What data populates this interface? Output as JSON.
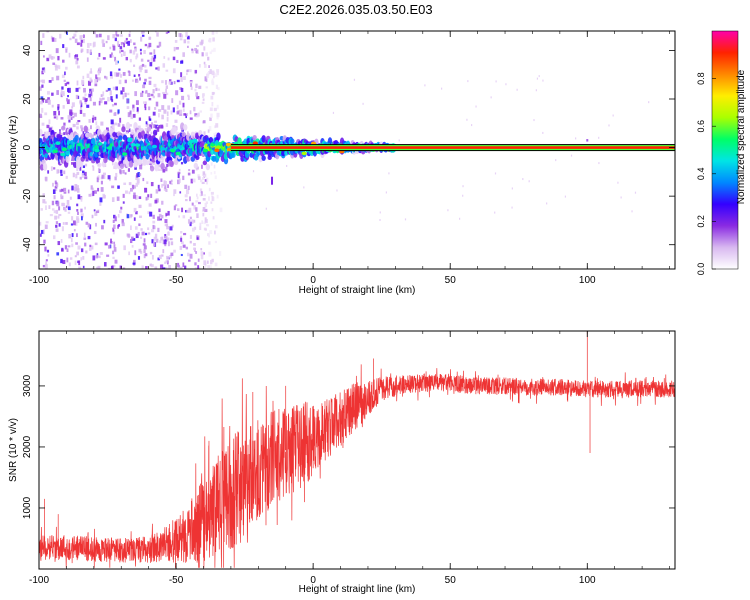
{
  "figure_title": "C2E2.2026.035.03.50.E03",
  "chart_data": [
    {
      "type": "heatmap",
      "xlabel": "Height of straight line (km)",
      "ylabel": "Frequency (Hz)",
      "xlim": [
        -100,
        132
      ],
      "ylim": [
        -50,
        48
      ],
      "xticks": [
        -100,
        -50,
        0,
        50,
        100
      ],
      "yticks": [
        -40,
        -20,
        0,
        20,
        40
      ],
      "colorbar": {
        "label": "Normalized spectral amplitude",
        "range": [
          0,
          1
        ],
        "ticks": [
          0.0,
          0.2,
          0.4,
          0.6,
          0.8
        ],
        "colors": [
          "#ffffff",
          "#d8b8f0",
          "#8a2be2",
          "#3300ff",
          "#0088ff",
          "#00e5e5",
          "#00ff66",
          "#aaff00",
          "#ffee00",
          "#ff8800",
          "#ff2200",
          "#ff00aa"
        ]
      },
      "features": {
        "carrier_frequency_hz": 0,
        "carrier_band_start_km": -30,
        "line_center_color": "#ff2200",
        "line_edge_color": "#000000",
        "scatter_region_km": [
          -100,
          -40
        ]
      }
    },
    {
      "type": "line",
      "xlabel": "Height of straight line (km)",
      "ylabel": "SNR (10 * v/v)",
      "xlim": [
        -100,
        132
      ],
      "ylim": [
        0,
        3900
      ],
      "xticks": [
        -100,
        -50,
        0,
        50,
        100
      ],
      "yticks": [
        1000,
        2000,
        3000
      ],
      "color": "#ee3333",
      "envelope": {
        "x": [
          -100,
          -90,
          -80,
          -70,
          -60,
          -50,
          -45,
          -40,
          -35,
          -30,
          -25,
          -20,
          -15,
          -10,
          -5,
          0,
          5,
          10,
          15,
          20,
          25,
          30,
          40,
          50,
          60,
          70,
          80,
          90,
          100,
          110,
          120,
          132
        ],
        "mean": [
          350,
          360,
          320,
          300,
          320,
          450,
          600,
          800,
          1000,
          1250,
          1450,
          1650,
          1800,
          1950,
          2000,
          2150,
          2300,
          2450,
          2650,
          2800,
          2950,
          3000,
          3050,
          3050,
          3000,
          3000,
          2980,
          2970,
          2950,
          2950,
          2950,
          2950
        ],
        "spread": [
          200,
          220,
          200,
          200,
          220,
          350,
          500,
          700,
          850,
          950,
          900,
          850,
          800,
          750,
          700,
          650,
          500,
          450,
          400,
          300,
          200,
          170,
          150,
          150,
          140,
          140,
          140,
          140,
          140,
          140,
          140,
          140
        ]
      },
      "spikes": [
        {
          "x": -98,
          "y": 1150
        },
        {
          "x": -93,
          "y": 900
        },
        {
          "x": -38,
          "y": 2100
        },
        {
          "x": -22,
          "y": 2900
        },
        {
          "x": -10,
          "y": 3000
        },
        {
          "x": 22,
          "y": 3450
        },
        {
          "x": 100,
          "y": 3900
        },
        {
          "x": 101,
          "y": 1900
        }
      ]
    }
  ]
}
